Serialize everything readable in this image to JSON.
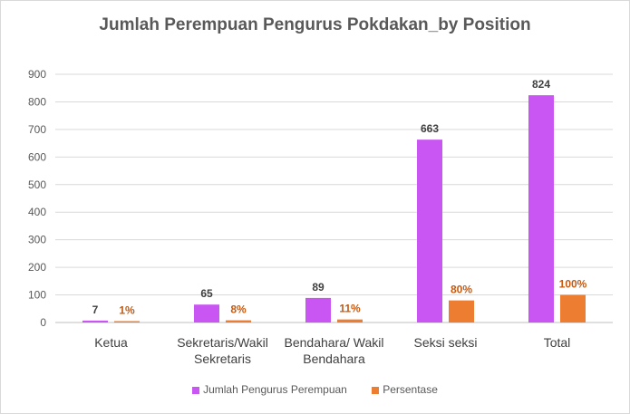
{
  "chart_data": {
    "type": "bar",
    "title": "Jumlah Perempuan Pengurus Pokdakan_by Position",
    "categories": [
      [
        "Ketua"
      ],
      [
        "Sekretaris/Wakil",
        "Sekretaris"
      ],
      [
        "Bendahara/ Wakil",
        "Bendahara"
      ],
      [
        "Seksi seksi"
      ],
      [
        "Total"
      ]
    ],
    "series": [
      {
        "name": "Jumlah Pengurus Perempuan",
        "values": [
          7,
          65,
          89,
          663,
          824
        ],
        "labels": [
          "7",
          "65",
          "89",
          "663",
          "824"
        ],
        "color": "#c955f2"
      },
      {
        "name": "Persentase",
        "values": [
          1,
          8,
          11,
          80,
          100
        ],
        "labels": [
          "1%",
          "8%",
          "11%",
          "80%",
          "100%"
        ],
        "color": "#ed7d31"
      }
    ],
    "ylim": [
      0,
      900
    ],
    "yticks": [
      0,
      100,
      200,
      300,
      400,
      500,
      600,
      700,
      800,
      900
    ],
    "grid": true,
    "legend": "bottom"
  }
}
